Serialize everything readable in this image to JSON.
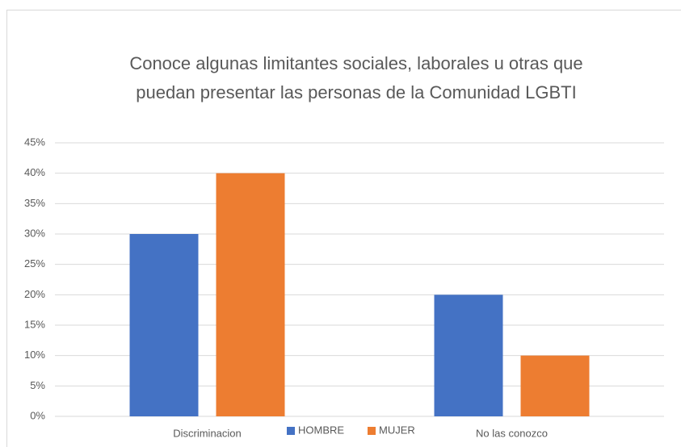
{
  "chart_data": {
    "type": "bar",
    "title": [
      "Conoce algunas limitantes sociales, laborales u otras que",
      "puedan presentar las personas de la Comunidad LGBTI"
    ],
    "categories": [
      "Discriminacion",
      "No las conozco"
    ],
    "series": [
      {
        "name": "HOMBRE",
        "color": "#4472c4",
        "values": [
          30,
          20
        ]
      },
      {
        "name": "MUJER",
        "color": "#ed7d31",
        "values": [
          40,
          10
        ]
      }
    ],
    "ylim": [
      0,
      45
    ],
    "yticks": [
      {
        "value": 0,
        "label": "0%"
      },
      {
        "value": 5,
        "label": "5%"
      },
      {
        "value": 10,
        "label": "10%"
      },
      {
        "value": 15,
        "label": "15%"
      },
      {
        "value": 20,
        "label": "20%"
      },
      {
        "value": 25,
        "label": "25%"
      },
      {
        "value": 30,
        "label": "30%"
      },
      {
        "value": 35,
        "label": "35%"
      },
      {
        "value": 40,
        "label": "40%"
      },
      {
        "value": 45,
        "label": "45%"
      }
    ],
    "grid": true,
    "legend": "bottom"
  }
}
